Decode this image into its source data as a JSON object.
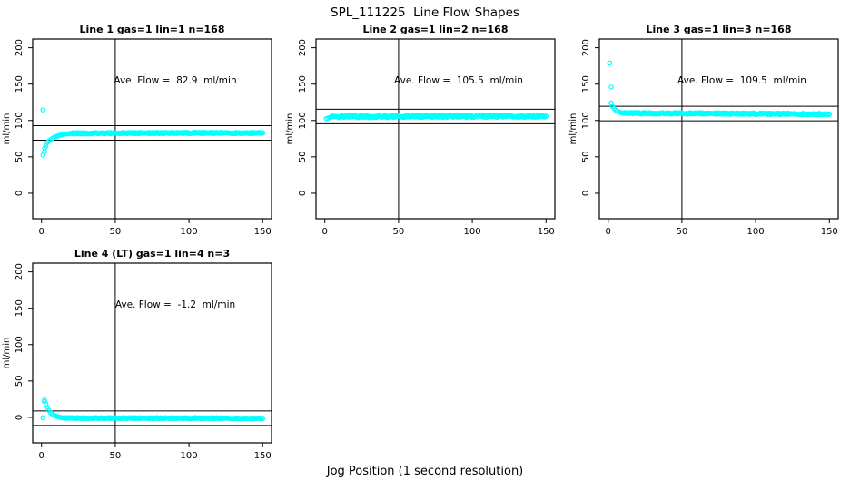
{
  "page": {
    "title": "SPL_111225  Line Flow Shapes",
    "xlabel": "Jog Position (1 second resolution)"
  },
  "style": {
    "point_color": "#00FFFF",
    "line_color": "#000000",
    "background": "#ffffff"
  },
  "chart_data": [
    {
      "type": "scatter",
      "title": "Line 1 gas=1 lin=1 n=168",
      "ave_flow": 82.9,
      "ave_flow_text": "Ave. Flow =  82.9  ml/min",
      "ylabel": "ml/min",
      "x_ticks": [
        0,
        50,
        100,
        150
      ],
      "y_ticks": [
        0,
        50,
        100,
        150,
        200
      ],
      "xlim": [
        -6,
        156
      ],
      "ylim": [
        -35,
        212
      ],
      "vline_x": 50,
      "hlines": [
        92.9,
        72.9
      ],
      "lead_points": [
        [
          1,
          114.5
        ],
        [
          1,
          52.5
        ],
        [
          2,
          57
        ],
        [
          2,
          62
        ],
        [
          3,
          65
        ],
        [
          3,
          68
        ],
        [
          4,
          70
        ],
        [
          5,
          72
        ],
        [
          6,
          73.5
        ],
        [
          7,
          75
        ],
        [
          8,
          76.2
        ],
        [
          9,
          77.2
        ],
        [
          10,
          78
        ],
        [
          11,
          78.8
        ],
        [
          12,
          79.4
        ],
        [
          13,
          80
        ],
        [
          14,
          80.4
        ],
        [
          15,
          80.8
        ],
        [
          16,
          81.2
        ],
        [
          17,
          81.5
        ],
        [
          18,
          81.8
        ],
        [
          19,
          82
        ],
        [
          20,
          82.2
        ]
      ],
      "band": {
        "from": 21,
        "to": 150,
        "y_start": 82.4,
        "y_end": 83.0,
        "half_width": 1.0
      },
      "grid_position": "row1-col1"
    },
    {
      "type": "scatter",
      "title": "Line 2 gas=1 lin=2 n=168",
      "ave_flow": 105.5,
      "ave_flow_text": "Ave. Flow =  105.5  ml/min",
      "ylabel": "ml/min",
      "x_ticks": [
        0,
        50,
        100,
        150
      ],
      "y_ticks": [
        0,
        50,
        100,
        150,
        200
      ],
      "xlim": [
        -6,
        156
      ],
      "ylim": [
        -35,
        212
      ],
      "vline_x": 50,
      "hlines": [
        115.5,
        95.5
      ],
      "lead_points": [
        [
          1,
          102.3
        ],
        [
          2,
          103.3
        ],
        [
          3,
          104.1
        ],
        [
          4,
          104.7
        ]
      ],
      "band": {
        "from": 5,
        "to": 150,
        "y_start": 105.2,
        "y_end": 106.0,
        "half_width": 1.5
      },
      "grid_position": "row1-col2"
    },
    {
      "type": "scatter",
      "title": "Line 3 gas=1 lin=3 n=168",
      "ave_flow": 109.5,
      "ave_flow_text": "Ave. Flow =  109.5  ml/min",
      "ylabel": "ml/min",
      "x_ticks": [
        0,
        50,
        100,
        150
      ],
      "y_ticks": [
        0,
        50,
        100,
        150,
        200
      ],
      "xlim": [
        -6,
        156
      ],
      "ylim": [
        -35,
        212
      ],
      "vline_x": 50,
      "hlines": [
        119.5,
        99.5
      ],
      "lead_points": [
        [
          1,
          179
        ],
        [
          2,
          146
        ],
        [
          2,
          124
        ],
        [
          3,
          119
        ],
        [
          4,
          116.5
        ],
        [
          5,
          114.5
        ],
        [
          6,
          113
        ],
        [
          7,
          112
        ],
        [
          8,
          111.2
        ],
        [
          9,
          110.6
        ],
        [
          10,
          110.2
        ]
      ],
      "band": {
        "from": 11,
        "to": 150,
        "y_start": 110.0,
        "y_end": 108.8,
        "half_width": 1.1
      },
      "grid_position": "row1-col3"
    },
    {
      "type": "scatter",
      "title": "Line 4 (LT) gas=1 lin=4 n=3",
      "ave_flow": -1.2,
      "ave_flow_text": "Ave. Flow =  -1.2  ml/min",
      "ylabel": "ml/min",
      "x_ticks": [
        0,
        50,
        100,
        150
      ],
      "y_ticks": [
        0,
        50,
        100,
        150,
        200
      ],
      "xlim": [
        -6,
        156
      ],
      "ylim": [
        -35,
        212
      ],
      "vline_x": 50,
      "hlines": [
        8.8,
        -11.2
      ],
      "lead_points": [
        [
          1,
          -0.5
        ],
        [
          2,
          24
        ],
        [
          2,
          21.5
        ],
        [
          3,
          18.5
        ],
        [
          4,
          13.5
        ],
        [
          5,
          9.5
        ],
        [
          6,
          6.8
        ],
        [
          7,
          5
        ],
        [
          8,
          3.6
        ],
        [
          9,
          2.5
        ],
        [
          10,
          1.7
        ],
        [
          11,
          1
        ],
        [
          12,
          0.4
        ],
        [
          13,
          -0.1
        ],
        [
          14,
          -0.5
        ],
        [
          15,
          -0.8
        ]
      ],
      "band": {
        "from": 16,
        "to": 150,
        "y_start": -1.0,
        "y_end": -1.3,
        "half_width": 0.7
      },
      "grid_position": "row2-col1"
    }
  ]
}
